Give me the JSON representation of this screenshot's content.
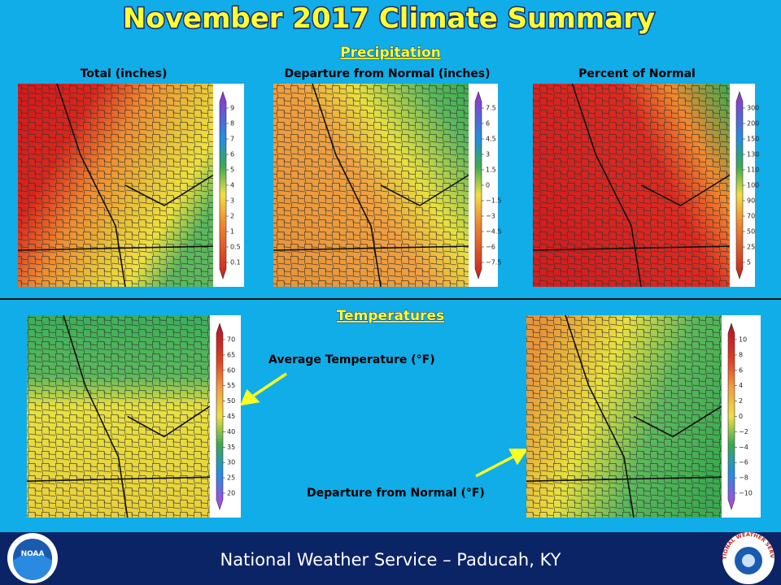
{
  "header": {
    "title": "November 2017 Climate Summary"
  },
  "precipitation": {
    "heading": "Precipitation",
    "maps": [
      {
        "title": "Total (inches)",
        "legend": [
          "9",
          "8",
          "7",
          "6",
          "5",
          "4",
          "3",
          "2",
          "1",
          "0.5",
          "0.1"
        ]
      },
      {
        "title": "Departure from Normal (inches)",
        "legend": [
          "7.5",
          "6",
          "4.5",
          "3",
          "1.5",
          "0",
          "−1.5",
          "−3",
          "−4.5",
          "−6",
          "−7.5"
        ]
      },
      {
        "title": "Percent of Normal",
        "legend": [
          "300",
          "200",
          "150",
          "130",
          "110",
          "100",
          "90",
          "70",
          "50",
          "25",
          "5"
        ]
      }
    ]
  },
  "temperatures": {
    "heading": "Temperatures",
    "maps": [
      {
        "label": "Average Temperature (°F)",
        "legend": [
          "70",
          "65",
          "60",
          "55",
          "50",
          "45",
          "40",
          "35",
          "30",
          "25",
          "20"
        ]
      },
      {
        "label": "Departure from Normal (°F)",
        "legend": [
          "10",
          "8",
          "6",
          "4",
          "2",
          "0",
          "−2",
          "−4",
          "−6",
          "−8",
          "−10"
        ]
      }
    ]
  },
  "footer": {
    "text": "National Weather Service – Paducah, KY",
    "noaa": "NOAA",
    "nws": "NATIONAL WEATHER SERVICE"
  }
}
